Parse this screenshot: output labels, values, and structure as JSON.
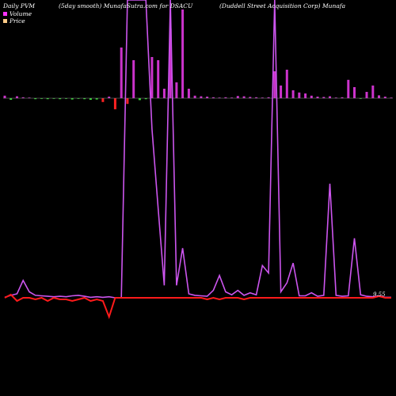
{
  "header": {
    "left": "Daily PVM",
    "middle": "(5day smooth) MunafaSutra.com for DSACU",
    "right": "(Duddell Street Acquisition Corp) Munafa"
  },
  "legend": [
    {
      "label": "Volume",
      "color": "#ff33ff"
    },
    {
      "label": "Price",
      "color": "#ffcc88"
    }
  ],
  "price_label": "9.55",
  "colors": {
    "background": "#000000",
    "volume_up": "#cc33cc",
    "volume_down": "#33dd33",
    "volume_negative_large": "#ff2222",
    "price_line": "#ff1a1a",
    "volume_line": "#cc55ee",
    "baseline": "#888888"
  },
  "chart_data": {
    "type": "bar",
    "title": "Daily PVM (5day smooth) MunafaSutra.com for DSACU (Duddell Street Acquisition Corp) Munafa",
    "series": [
      {
        "name": "Volume",
        "values": [
          0.8,
          -0.5,
          0.6,
          0.3,
          0.2,
          -0.3,
          -0.2,
          -0.3,
          -0.2,
          -0.3,
          -0.2,
          -0.4,
          -0.2,
          -0.3,
          -0.5,
          -0.4,
          -1.2,
          0.5,
          -3.5,
          16,
          -1.8,
          12,
          -0.6,
          -0.3,
          13,
          12,
          3,
          22,
          5,
          28,
          3,
          0.8,
          0.6,
          0.5,
          0.3,
          0.2,
          0.3,
          0.2,
          0.7,
          0.6,
          0.4,
          0.3,
          0.2,
          0.3,
          8.5,
          4,
          9,
          2.5,
          1.8,
          1.5,
          0.8,
          0.5,
          0.4,
          0.6,
          0.2,
          0.3,
          5.8,
          3.5,
          -0.2,
          2,
          4,
          0.9,
          0.5,
          0.2
        ]
      },
      {
        "name": "Price",
        "values": [
          9.72,
          9.74,
          9.7,
          9.72,
          9.72,
          9.71,
          9.72,
          9.7,
          9.72,
          9.71,
          9.71,
          9.7,
          9.71,
          9.72,
          9.7,
          9.71,
          9.7,
          9.6,
          9.72,
          9.72,
          9.72,
          9.72,
          9.72,
          9.72,
          9.72,
          9.72,
          9.72,
          9.72,
          9.72,
          9.72,
          9.72,
          9.72,
          9.72,
          9.71,
          9.72,
          9.71,
          9.72,
          9.72,
          9.72,
          9.71,
          9.72,
          9.72,
          9.72,
          9.72,
          9.72,
          9.72,
          9.72,
          9.72,
          9.72,
          9.72,
          9.72,
          9.72,
          9.72,
          9.72,
          9.72,
          9.72,
          9.72,
          9.72,
          9.72,
          9.72,
          9.72,
          9.73,
          9.72,
          9.72
        ]
      }
    ],
    "volume_line": [
      0.1,
      0.5,
      0.8,
      3.5,
      1.2,
      0.5,
      0.4,
      0.3,
      0.2,
      0.3,
      0.2,
      0.4,
      0.5,
      0.3,
      0.1,
      0.2,
      0.1,
      0.2,
      0.0,
      0.0,
      60,
      60,
      60,
      60,
      34,
      18,
      2.5,
      60,
      2.5,
      10,
      0.8,
      0.5,
      0.4,
      0.3,
      1.5,
      4.5,
      1.2,
      0.6,
      1.5,
      0.5,
      1.0,
      0.6,
      6.5,
      5.0,
      60,
      1.2,
      3.0,
      7.0,
      0.4,
      0.4,
      1.0,
      0.3,
      0.5,
      23,
      0.5,
      0.3,
      0.4,
      12,
      0.6,
      0.3,
      0.2,
      0.4,
      0.1,
      0.1
    ],
    "price_label": "9.55"
  }
}
